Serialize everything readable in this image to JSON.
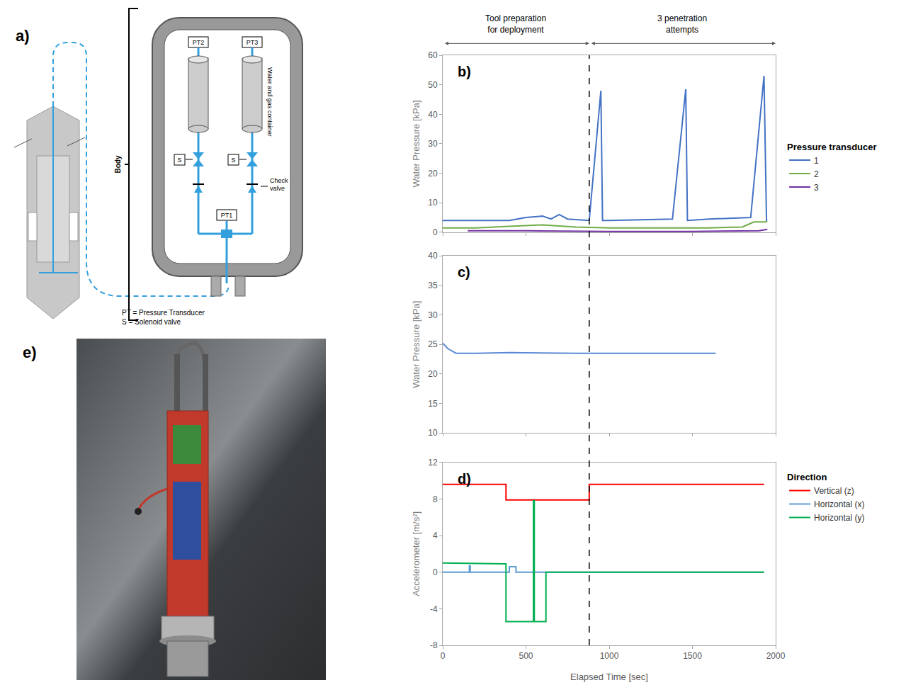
{
  "diagram": {
    "label": "a)",
    "body": "Body",
    "pt_labels": [
      "PT1",
      "PT2",
      "PT3"
    ],
    "valve_labels": [
      "S",
      "S"
    ],
    "container": "Water and gas container",
    "check_valve": "Check valve",
    "key": [
      "PT = Pressure Transducer",
      "S = Solenoid valve"
    ]
  },
  "photo": {
    "label": "e)"
  },
  "timeline": {
    "divider_x": 880,
    "phases": [
      {
        "label": "Tool preparation for deployment",
        "start": 0,
        "end": 880
      },
      {
        "label": "3 penetration attempts",
        "start": 880,
        "end": 2000
      }
    ]
  },
  "chart_data": [
    {
      "type": "line",
      "panel": "b)",
      "ylabel": "Water Pressure [kPa]",
      "xlim": [
        0,
        2000
      ],
      "xticks": [
        0,
        500,
        1000,
        1500,
        2000
      ],
      "ylim": [
        0,
        60
      ],
      "yticks": [
        0,
        10,
        20,
        30,
        40,
        50,
        60
      ],
      "grid": false,
      "tick_labels": "y",
      "legend": "right",
      "legend_title": "Pressure transducer",
      "series": [
        {
          "name": "1",
          "color": "#4472c4",
          "x": [
            0,
            200,
            400,
            500,
            600,
            650,
            700,
            750,
            880,
            950,
            960,
            1000,
            1380,
            1460,
            1470,
            1600,
            1800,
            1850,
            1930,
            1945,
            1950
          ],
          "values": [
            4,
            4,
            4,
            5,
            5.5,
            4.5,
            6,
            4.5,
            4,
            48,
            4,
            4,
            4.5,
            48.5,
            4,
            4.5,
            5,
            5,
            53,
            4,
            4
          ]
        },
        {
          "name": "2",
          "color": "#70ad47",
          "x": [
            0,
            200,
            400,
            600,
            800,
            1000,
            1200,
            1400,
            1600,
            1800,
            1870,
            1950
          ],
          "values": [
            1.5,
            1.5,
            2,
            2.5,
            1.8,
            1.5,
            1.5,
            1.5,
            1.5,
            1.8,
            3.5,
            3.5
          ]
        },
        {
          "name": "3",
          "color": "#7030a0",
          "x": [
            150,
            500,
            1000,
            1500,
            1900,
            1950
          ],
          "values": [
            0.5,
            0.5,
            0.3,
            0.3,
            0.5,
            1
          ]
        }
      ]
    },
    {
      "type": "line",
      "panel": "c)",
      "ylabel": "Water Pressure [kPa]",
      "xlim": [
        0,
        2000
      ],
      "xticks": [
        0,
        500,
        1000,
        1500,
        2000
      ],
      "ylim": [
        10,
        40
      ],
      "yticks": [
        10,
        15,
        20,
        25,
        30,
        35,
        40
      ],
      "grid": false,
      "tick_labels": "y",
      "series": [
        {
          "color": "#5b8ad4",
          "x": [
            0,
            30,
            80,
            200,
            400,
            800,
            1200,
            1640
          ],
          "values": [
            25.2,
            24.3,
            23.5,
            23.5,
            23.6,
            23.5,
            23.5,
            23.5
          ]
        }
      ]
    },
    {
      "type": "line",
      "panel": "d)",
      "xlabel": "Elapsed Time [sec]",
      "ylabel": "Accelerometer [m/s²]",
      "xlim": [
        0,
        2000
      ],
      "xticks": [
        0,
        500,
        1000,
        1500,
        2000
      ],
      "ylim": [
        -8,
        12
      ],
      "yticks": [
        -8,
        -4,
        0,
        4,
        8,
        12
      ],
      "grid": false,
      "tick_labels": true,
      "legend": "right",
      "legend_title": "Direction",
      "series": [
        {
          "name": "Vertical (z)",
          "color": "#ff0000",
          "x": [
            0,
            380,
            380,
            880,
            880,
            1930
          ],
          "values": [
            9.6,
            9.6,
            7.9,
            7.9,
            9.6,
            9.6
          ]
        },
        {
          "name": "Horizontal (x)",
          "color": "#5b9bd5",
          "x": [
            0,
            160,
            160,
            165,
            165,
            400,
            400,
            440,
            440,
            1930
          ],
          "values": [
            0,
            0,
            0.7,
            0.7,
            0,
            0,
            0.6,
            0.6,
            0,
            0
          ]
        },
        {
          "name": "Horizontal (y)",
          "color": "#00b050",
          "x": [
            0,
            380,
            380,
            545,
            545,
            550,
            550,
            620,
            620,
            1930
          ],
          "values": [
            1,
            0.9,
            -5.4,
            -5.4,
            7.8,
            7.8,
            -5.4,
            -5.4,
            0,
            0
          ]
        }
      ]
    }
  ]
}
